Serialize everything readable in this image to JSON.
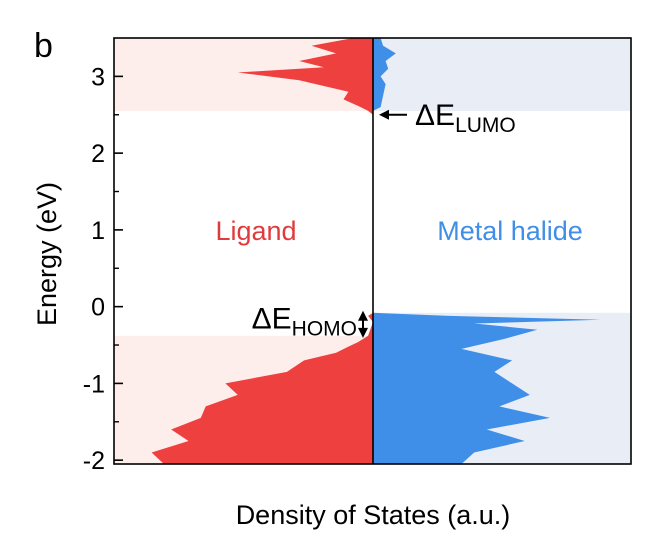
{
  "chart_data": {
    "type": "area",
    "panel_label": "b",
    "xlabel": "Density of States (a.u.)",
    "ylabel": "Energy (eV)",
    "ylim": [
      -2.05,
      3.5
    ],
    "yticks": [
      -2,
      -1,
      0,
      1,
      2,
      3
    ],
    "ytick_labels": [
      "-2",
      "-1",
      "0",
      "1",
      "2",
      "3"
    ],
    "grid": false,
    "series": [
      {
        "name": "Ligand",
        "side": "left",
        "color": "#ef4040",
        "shade_color": "#fdeeec",
        "shade_ranges": [
          [
            2.55,
            3.5
          ],
          [
            -2.05,
            -0.38
          ]
        ],
        "energy": [
          -2.05,
          -1.9,
          -1.75,
          -1.6,
          -1.45,
          -1.3,
          -1.15,
          -1.0,
          -0.85,
          -0.7,
          -0.6,
          -0.52,
          -0.46,
          -0.4,
          -0.38,
          -0.2,
          -0.12,
          -0.08,
          0.0,
          2.5,
          2.55,
          2.6,
          2.7,
          2.8,
          2.95,
          3.05,
          3.12,
          3.2,
          3.3,
          3.4,
          3.5
        ],
        "dos": [
          0.85,
          0.9,
          0.75,
          0.82,
          0.7,
          0.68,
          0.55,
          0.6,
          0.35,
          0.28,
          0.15,
          0.1,
          0.06,
          0.03,
          0.02,
          0.0,
          0.02,
          0.0,
          0.0,
          0.0,
          0.02,
          0.05,
          0.12,
          0.1,
          0.3,
          0.55,
          0.2,
          0.3,
          0.15,
          0.25,
          0.08
        ]
      },
      {
        "name": "Metal halide",
        "side": "right",
        "color": "#3f8ee8",
        "shade_color": "#e8edf6",
        "shade_ranges": [
          [
            2.55,
            3.5
          ],
          [
            -2.05,
            -0.08
          ]
        ],
        "energy": [
          -2.05,
          -1.9,
          -1.75,
          -1.6,
          -1.45,
          -1.3,
          -1.15,
          -1.0,
          -0.85,
          -0.7,
          -0.55,
          -0.42,
          -0.3,
          -0.22,
          -0.17,
          -0.12,
          -0.08,
          0.0,
          2.55,
          2.6,
          2.75,
          2.9,
          3.0,
          3.1,
          3.2,
          3.3,
          3.4,
          3.5
        ],
        "dos": [
          0.35,
          0.4,
          0.6,
          0.45,
          0.7,
          0.5,
          0.62,
          0.55,
          0.48,
          0.55,
          0.35,
          0.52,
          0.65,
          0.4,
          0.9,
          0.3,
          0.0,
          0.0,
          0.0,
          0.03,
          0.04,
          0.05,
          0.03,
          0.06,
          0.05,
          0.09,
          0.04,
          0.03
        ]
      }
    ],
    "annotations": [
      {
        "id": "lumo",
        "prefix": "ΔE",
        "subscript": "LUMO",
        "energy": 2.5
      },
      {
        "id": "homo",
        "prefix": "ΔE",
        "subscript": "HOMO",
        "energy_top": -0.08,
        "energy_bottom": -0.38
      }
    ]
  }
}
